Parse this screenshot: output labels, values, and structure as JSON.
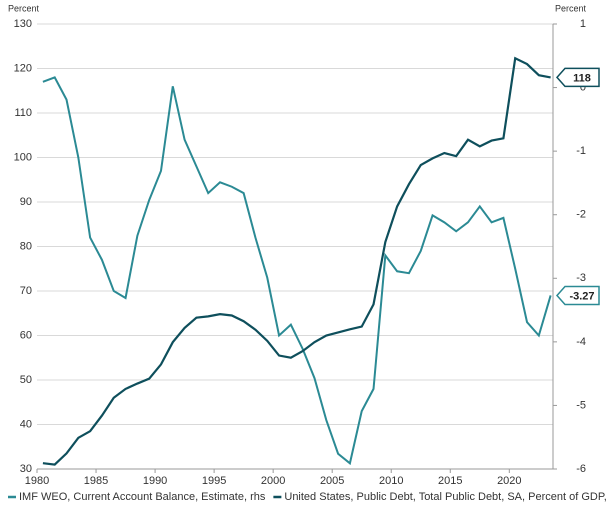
{
  "chart_data": {
    "type": "line",
    "ylabel": "Percent",
    "y2label": "Percent",
    "x": [
      1980.5,
      1981.5,
      1982.5,
      1983.5,
      1984.5,
      1985.5,
      1986.5,
      1987.5,
      1988.5,
      1989.5,
      1990.5,
      1991.5,
      1992.5,
      1993.5,
      1994.5,
      1995.5,
      1996.5,
      1997.5,
      1998.5,
      1999.5,
      2000.5,
      2001.5,
      2002.5,
      2003.5,
      2004.5,
      2005.5,
      2006.5,
      2007.5,
      2008.5,
      2009.5,
      2010.5,
      2011.5,
      2012.5,
      2013.5,
      2014.5,
      2015.5,
      2016.5,
      2017.5,
      2018.5,
      2019.5,
      2020.5,
      2021.5,
      2022.5,
      2023.5
    ],
    "series": [
      {
        "name": "IMF WEO, Current Account Balance, Estimate, rhs",
        "color": "#2b8a94",
        "axis": "y2",
        "values": [
          0.09,
          0.16,
          -0.19,
          -1.1,
          -2.36,
          -2.71,
          -3.2,
          -3.31,
          -2.33,
          -1.77,
          -1.31,
          0.02,
          -0.82,
          -1.24,
          -1.66,
          -1.49,
          -1.56,
          -1.66,
          -2.36,
          -2.99,
          -3.9,
          -3.73,
          -4.11,
          -4.57,
          -5.23,
          -5.76,
          -5.91,
          -5.09,
          -4.74,
          -2.64,
          -2.89,
          -2.92,
          -2.57,
          -2.01,
          -2.12,
          -2.26,
          -2.12,
          -1.87,
          -2.12,
          -2.05,
          -2.85,
          -3.69,
          -3.9,
          -3.27
        ]
      },
      {
        "name": "United States, Public Debt, Total Public Debt, SA, Percent of GDP, lhs",
        "color": "#0e4f5c",
        "values": [
          31.3,
          31,
          33.5,
          37,
          38.5,
          42,
          46,
          48,
          49.2,
          50.3,
          53.5,
          58.5,
          61.7,
          64,
          64.3,
          64.8,
          64.5,
          63.2,
          61.3,
          58.8,
          55.5,
          55,
          56.5,
          58.5,
          60,
          60.7,
          61.4,
          62,
          67,
          81,
          89,
          94,
          98.3,
          99.8,
          101,
          100.3,
          104,
          102.5,
          103.8,
          104.3,
          122.3,
          121,
          118.5,
          118
        ]
      }
    ],
    "xlim": [
      1980,
      2023.7
    ],
    "xticks": [
      1980,
      1985,
      1990,
      1995,
      2000,
      2005,
      2010,
      2015,
      2020
    ],
    "ylim": [
      30,
      130
    ],
    "yticks": [
      30,
      40,
      50,
      60,
      70,
      80,
      90,
      100,
      110,
      120,
      130
    ],
    "y2lim": [
      -6,
      1
    ],
    "y2ticks": [
      -6,
      -5,
      -4,
      -3,
      -2,
      -1,
      0,
      1
    ],
    "grid": true
  }
}
